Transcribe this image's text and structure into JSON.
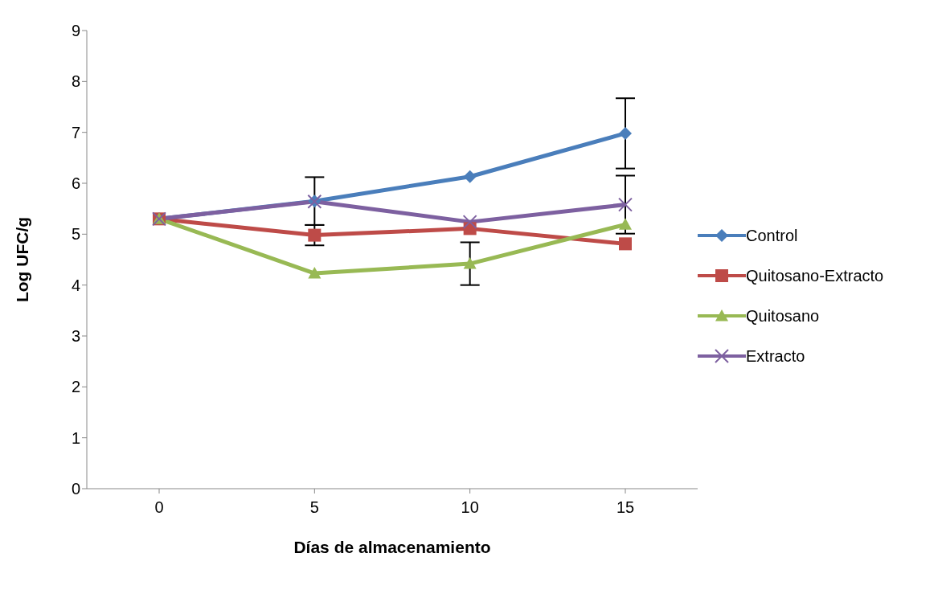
{
  "chart_data": {
    "type": "line",
    "xlabel": "Días de almacenamiento",
    "ylabel": "Log UFC/g",
    "categories": [
      "0",
      "5",
      "10",
      "15"
    ],
    "ylim": [
      0,
      9
    ],
    "yticks": [
      0,
      1,
      2,
      3,
      4,
      5,
      6,
      7,
      8,
      9
    ],
    "grid": false,
    "legend": "right",
    "series": [
      {
        "name": "Control",
        "color": "#4a7ebb",
        "marker": "diamond",
        "values": [
          5.3,
          5.65,
          6.13,
          6.98
        ],
        "errors": [
          null,
          0.47,
          null,
          0.69
        ]
      },
      {
        "name": "Quitosano-Extracto",
        "color": "#be4b48",
        "marker": "square",
        "values": [
          5.3,
          4.98,
          5.11,
          4.81
        ],
        "errors": [
          null,
          0.2,
          null,
          null
        ]
      },
      {
        "name": "Quitosano",
        "color": "#98b954",
        "marker": "triangle",
        "values": [
          5.3,
          4.23,
          4.42,
          5.19
        ],
        "errors": [
          null,
          null,
          0.42,
          null
        ]
      },
      {
        "name": "Extracto",
        "color": "#7d60a0",
        "marker": "cross",
        "values": [
          5.3,
          5.64,
          5.24,
          5.58
        ],
        "errors": [
          null,
          null,
          null,
          0.57
        ]
      }
    ]
  }
}
